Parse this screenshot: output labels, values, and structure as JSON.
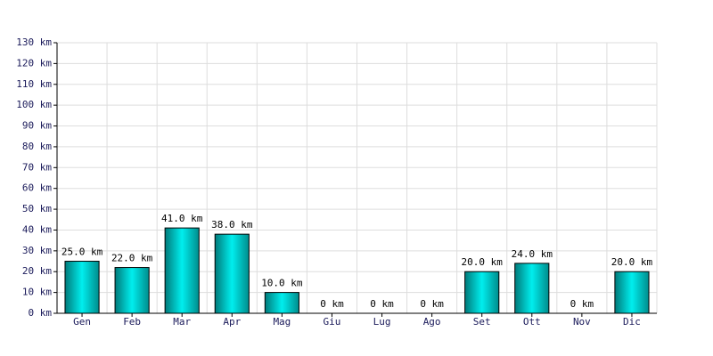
{
  "chart_data": {
    "type": "bar",
    "categories": [
      "Gen",
      "Feb",
      "Mar",
      "Apr",
      "Mag",
      "Giu",
      "Lug",
      "Ago",
      "Set",
      "Ott",
      "Nov",
      "Dic"
    ],
    "values": [
      25,
      22,
      41,
      38,
      10,
      0,
      0,
      0,
      20,
      24,
      0,
      20
    ],
    "value_labels": [
      "25.0 km",
      "22.0 km",
      "41.0 km",
      "38.0 km",
      "10.0 km",
      "0 km",
      "0 km",
      "0 km",
      "20.0 km",
      "24.0 km",
      "0 km",
      "20.0 km"
    ],
    "color": "#00cccc",
    "ylim": [
      0,
      130
    ],
    "yticks": [
      {
        "value": 0,
        "label": "0 km"
      },
      {
        "value": 10,
        "label": "10 km"
      },
      {
        "value": 20,
        "label": "20 km"
      },
      {
        "value": 30,
        "label": "30 km"
      },
      {
        "value": 40,
        "label": "40 km"
      },
      {
        "value": 50,
        "label": "50 km"
      },
      {
        "value": 60,
        "label": "60 km"
      },
      {
        "value": 70,
        "label": "70 km"
      },
      {
        "value": 80,
        "label": "80 km"
      },
      {
        "value": 90,
        "label": "90 km"
      },
      {
        "value": 100,
        "label": "100 km"
      },
      {
        "value": 110,
        "label": "110 km"
      },
      {
        "value": 120,
        "label": "120 km"
      },
      {
        "value": 130,
        "label": "130 km"
      }
    ],
    "grid": true
  }
}
